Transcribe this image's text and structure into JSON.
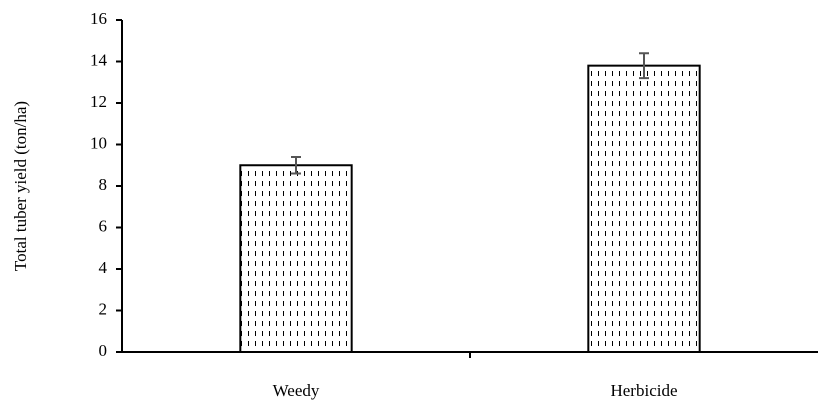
{
  "chart_data": {
    "type": "bar",
    "y_label": "Total tuber yield (ton/ha)",
    "categories": [
      "Weedy",
      "Herbicide"
    ],
    "values": [
      9.0,
      13.8
    ],
    "errors": [
      0.4,
      0.6
    ],
    "color": "#000000",
    "error_color": "#555555",
    "ylim": [
      0,
      16
    ],
    "yticks": [
      0,
      2,
      4,
      6,
      8,
      10,
      12,
      14,
      16
    ],
    "grid": false
  }
}
